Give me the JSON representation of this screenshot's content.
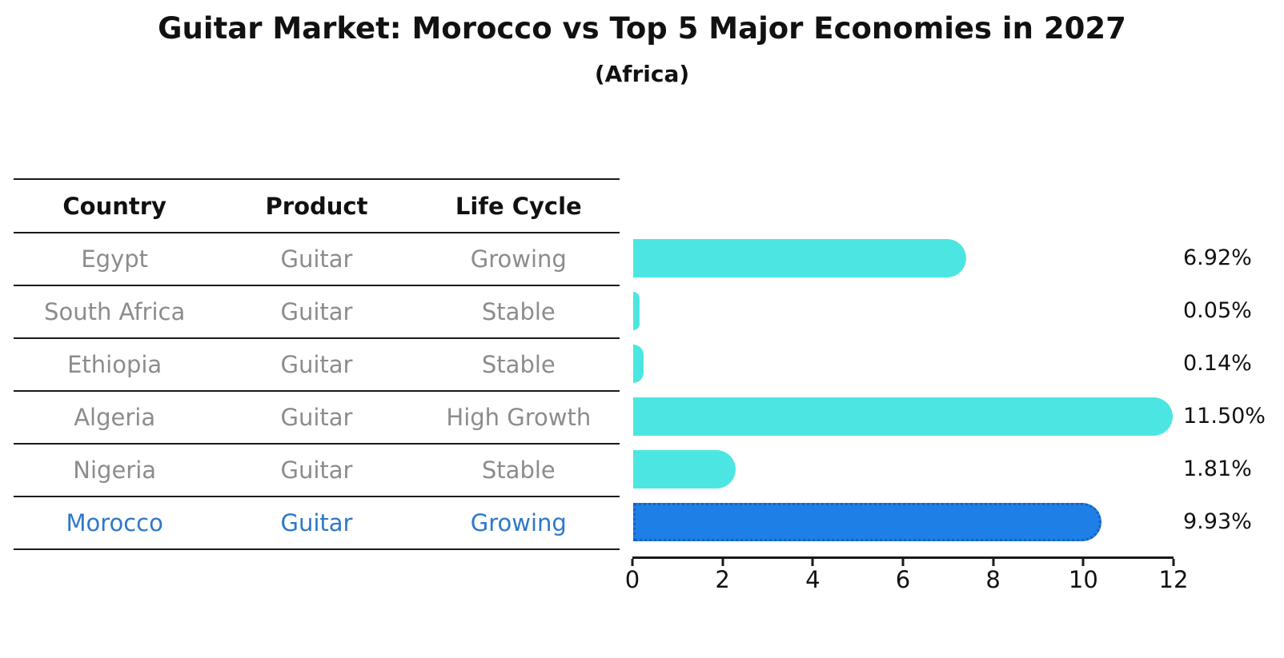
{
  "chart_data": {
    "type": "bar",
    "orientation": "horizontal",
    "title": "Guitar Market: Morocco vs Top 5 Major Economies in 2027",
    "subtitle": "(Africa)",
    "categories": [
      "Egypt",
      "South Africa",
      "Ethiopia",
      "Algeria",
      "Nigeria",
      "Morocco"
    ],
    "values": [
      6.92,
      0.05,
      0.14,
      11.5,
      1.81,
      9.93
    ],
    "value_labels": [
      "6.92%",
      "0.05%",
      "0.14%",
      "11.50%",
      "1.81%",
      "9.93%"
    ],
    "x_ticks": [
      0,
      2,
      4,
      6,
      8,
      10,
      12
    ],
    "xlim": [
      0,
      12
    ],
    "xlabel": "",
    "ylabel": "",
    "grid": false,
    "legend": false,
    "bar_color": "#4ce6e2",
    "highlight_index": 5,
    "highlight_color": "#1e80e6",
    "highlight_border_color": "#1d5fc4",
    "axis_color": "#1a1a1a",
    "label_color": "#111111"
  },
  "table": {
    "columns": [
      "Country",
      "Product",
      "Life Cycle"
    ],
    "rows": [
      {
        "country": "Egypt",
        "product": "Guitar",
        "life_cycle": "Growing",
        "highlight": false
      },
      {
        "country": "South Africa",
        "product": "Guitar",
        "life_cycle": "Stable",
        "highlight": false
      },
      {
        "country": "Ethiopia",
        "product": "Guitar",
        "life_cycle": "Stable",
        "highlight": false
      },
      {
        "country": "Algeria",
        "product": "Guitar",
        "life_cycle": "High Growth",
        "highlight": false
      },
      {
        "country": "Nigeria",
        "product": "Guitar",
        "life_cycle": "Stable",
        "highlight": false
      },
      {
        "country": "Morocco",
        "product": "Guitar",
        "life_cycle": "Growing",
        "highlight": true
      }
    ],
    "text_color": "#8c8c8c",
    "header_color": "#111111",
    "highlight_text_color": "#2e78c8"
  }
}
